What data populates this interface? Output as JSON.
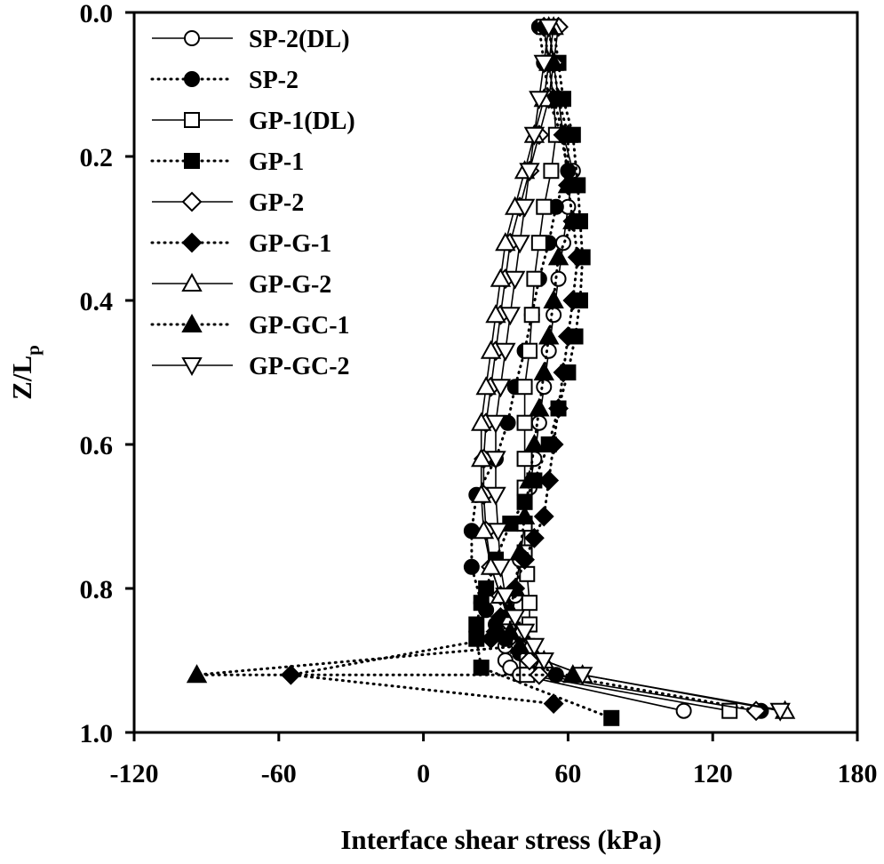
{
  "chart_data": {
    "type": "line",
    "title": "",
    "xlabel": "Interface shear stress (kPa)",
    "ylabel_main": "Z/L",
    "ylabel_sub": "p",
    "xlim": [
      -120,
      180
    ],
    "ylim": [
      0.0,
      1.0
    ],
    "y_inverted": true,
    "xticks": [
      -120,
      -60,
      0,
      60,
      120,
      180
    ],
    "xtick_labels": [
      "-120",
      "-60",
      "0",
      "60",
      "120",
      "180"
    ],
    "yticks": [
      0.0,
      0.2,
      0.4,
      0.6,
      0.8,
      1.0
    ],
    "ytick_labels": [
      "0.0",
      "0.2",
      "0.4",
      "0.6",
      "0.8",
      "1.0"
    ],
    "grid": false,
    "legend_position": "top-left",
    "series": [
      {
        "name": "SP-2(DL)",
        "marker": "circle",
        "fill": "open",
        "line": "solid",
        "x": [
          52,
          54,
          56,
          58,
          62,
          60,
          58,
          56,
          54,
          52,
          50,
          48,
          46,
          44,
          42,
          40,
          38,
          36,
          34,
          34,
          36,
          40,
          108
        ],
        "y": [
          0.02,
          0.07,
          0.12,
          0.17,
          0.22,
          0.27,
          0.32,
          0.37,
          0.42,
          0.47,
          0.52,
          0.57,
          0.62,
          0.66,
          0.71,
          0.76,
          0.81,
          0.86,
          0.88,
          0.9,
          0.91,
          0.92,
          0.97
        ]
      },
      {
        "name": "SP-2",
        "marker": "circle",
        "fill": "filled",
        "line": "dotted",
        "x": [
          48,
          50,
          52,
          57,
          60,
          55,
          52,
          48,
          45,
          42,
          38,
          35,
          30,
          22,
          20,
          20,
          24,
          26,
          30,
          34,
          40,
          55,
          140
        ],
        "y": [
          0.02,
          0.07,
          0.12,
          0.17,
          0.22,
          0.27,
          0.32,
          0.37,
          0.42,
          0.47,
          0.52,
          0.57,
          0.62,
          0.67,
          0.72,
          0.77,
          0.82,
          0.83,
          0.85,
          0.87,
          0.89,
          0.92,
          0.97
        ]
      },
      {
        "name": "GP-1(DL)",
        "marker": "square",
        "fill": "open",
        "line": "solid",
        "x": [
          50,
          52,
          54,
          55,
          53,
          50,
          48,
          46,
          45,
          44,
          42,
          42,
          42,
          42,
          42,
          42,
          43,
          44,
          44,
          43,
          43,
          43,
          127
        ],
        "y": [
          0.02,
          0.07,
          0.12,
          0.17,
          0.22,
          0.27,
          0.32,
          0.37,
          0.42,
          0.47,
          0.52,
          0.57,
          0.62,
          0.66,
          0.71,
          0.75,
          0.78,
          0.82,
          0.85,
          0.88,
          0.9,
          0.92,
          0.97
        ]
      },
      {
        "name": "GP-1",
        "marker": "square",
        "fill": "filled",
        "line": "dotted",
        "x": [
          54,
          56,
          58,
          62,
          64,
          65,
          66,
          65,
          63,
          60,
          56,
          52,
          46,
          42,
          36,
          30,
          26,
          24,
          22,
          22,
          24,
          78
        ],
        "y": [
          0.02,
          0.07,
          0.12,
          0.17,
          0.24,
          0.29,
          0.34,
          0.4,
          0.45,
          0.5,
          0.55,
          0.6,
          0.65,
          0.68,
          0.71,
          0.76,
          0.8,
          0.82,
          0.85,
          0.87,
          0.91,
          0.98
        ]
      },
      {
        "name": "GP-2",
        "marker": "diamond",
        "fill": "open",
        "line": "solid",
        "x": [
          56,
          54,
          52,
          48,
          44,
          40,
          36,
          34,
          32,
          30,
          28,
          26,
          25,
          25,
          26,
          28,
          32,
          36,
          40,
          44,
          48,
          138
        ],
        "y": [
          0.02,
          0.07,
          0.12,
          0.17,
          0.22,
          0.27,
          0.32,
          0.37,
          0.42,
          0.47,
          0.52,
          0.57,
          0.62,
          0.67,
          0.72,
          0.77,
          0.81,
          0.85,
          0.88,
          0.9,
          0.92,
          0.97
        ]
      },
      {
        "name": "GP-G-1",
        "marker": "diamond",
        "fill": "filled",
        "line": "dotted",
        "x": [
          50,
          52,
          54,
          58,
          60,
          62,
          64,
          62,
          60,
          58,
          56,
          54,
          52,
          50,
          46,
          42,
          38,
          32,
          30,
          28,
          -55,
          54
        ],
        "y": [
          0.02,
          0.07,
          0.12,
          0.17,
          0.24,
          0.29,
          0.34,
          0.4,
          0.45,
          0.5,
          0.55,
          0.6,
          0.65,
          0.7,
          0.73,
          0.76,
          0.8,
          0.84,
          0.86,
          0.87,
          0.92,
          0.96
        ]
      },
      {
        "name": "GP-G-2",
        "marker": "triangle-up",
        "fill": "open",
        "line": "solid",
        "x": [
          54,
          52,
          50,
          46,
          42,
          38,
          34,
          32,
          30,
          28,
          26,
          24,
          24,
          24,
          25,
          28,
          32,
          36,
          40,
          44,
          50,
          66,
          150
        ],
        "y": [
          0.02,
          0.07,
          0.12,
          0.17,
          0.22,
          0.27,
          0.32,
          0.37,
          0.42,
          0.47,
          0.52,
          0.57,
          0.62,
          0.67,
          0.72,
          0.77,
          0.81,
          0.84,
          0.86,
          0.88,
          0.9,
          0.92,
          0.97
        ]
      },
      {
        "name": "GP-GC-1",
        "marker": "triangle-up",
        "fill": "filled",
        "line": "dotted",
        "x": [
          52,
          54,
          56,
          60,
          60,
          62,
          56,
          54,
          52,
          50,
          48,
          46,
          44,
          42,
          40,
          38,
          36,
          36,
          40,
          -94,
          62
        ],
        "y": [
          0.02,
          0.07,
          0.12,
          0.17,
          0.24,
          0.29,
          0.34,
          0.4,
          0.45,
          0.5,
          0.55,
          0.6,
          0.65,
          0.7,
          0.75,
          0.8,
          0.83,
          0.86,
          0.88,
          0.92,
          0.92
        ]
      },
      {
        "name": "GP-GC-2",
        "marker": "triangle-down",
        "fill": "open",
        "line": "solid",
        "x": [
          52,
          50,
          48,
          46,
          44,
          42,
          40,
          38,
          36,
          34,
          32,
          30,
          30,
          30,
          31,
          32,
          34,
          38,
          42,
          46,
          50,
          66,
          148
        ],
        "y": [
          0.02,
          0.07,
          0.12,
          0.17,
          0.22,
          0.27,
          0.32,
          0.37,
          0.42,
          0.47,
          0.52,
          0.57,
          0.62,
          0.67,
          0.72,
          0.77,
          0.81,
          0.84,
          0.86,
          0.88,
          0.9,
          0.92,
          0.97
        ]
      }
    ]
  }
}
